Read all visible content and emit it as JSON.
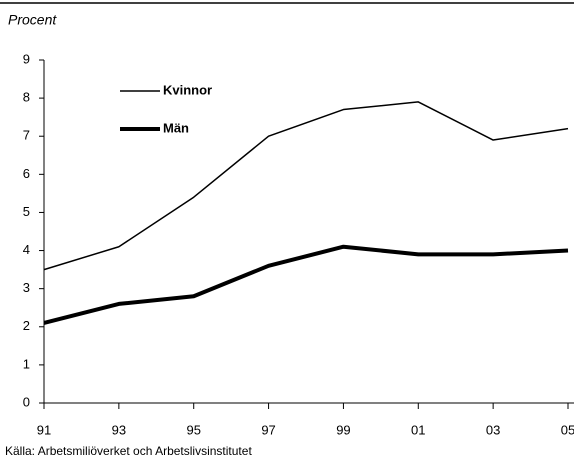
{
  "chart_data": {
    "type": "line",
    "y_label": "Procent",
    "source": "Källa: Arbetsmiliöverket och Arbetslivsinstitutet",
    "categories": [
      "91",
      "93",
      "95",
      "97",
      "99",
      "01",
      "03",
      "05"
    ],
    "series": [
      {
        "name": "Kvinnor",
        "color": "#000000",
        "line_width": 1.5,
        "values": [
          3.5,
          4.1,
          5.4,
          7.0,
          7.7,
          7.9,
          6.9,
          7.2
        ]
      },
      {
        "name": "Män",
        "color": "#000000",
        "line_width": 4,
        "values": [
          2.1,
          2.6,
          2.8,
          3.6,
          4.1,
          3.9,
          3.9,
          4.0
        ]
      }
    ],
    "ylim": [
      0,
      9
    ],
    "yticks": [
      0,
      1,
      2,
      3,
      4,
      5,
      6,
      7,
      8,
      9
    ],
    "grid": false,
    "legend": "upper left"
  }
}
